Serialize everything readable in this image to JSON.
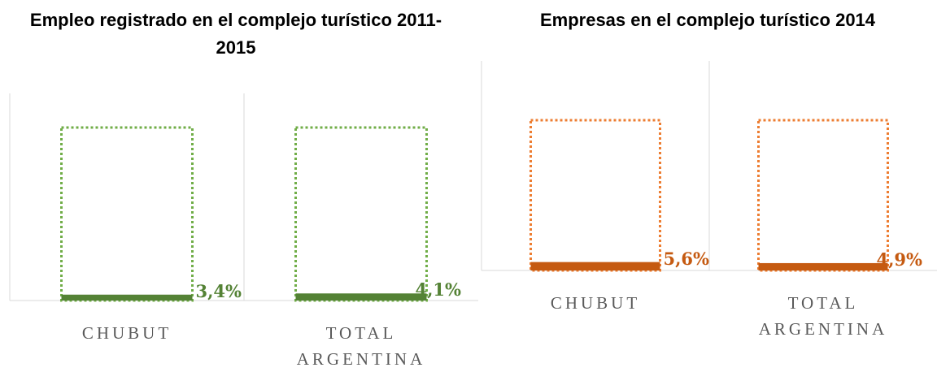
{
  "chart_data": [
    {
      "type": "bar",
      "title": "Empleo registrado en el complejo turístico 2011-2015",
      "categories": [
        "CHUBUT",
        "TOTAL ARGENTINA"
      ],
      "values": [
        3.4,
        4.1
      ],
      "value_labels": [
        "3,4%",
        "4,1%"
      ],
      "color": "#548235",
      "outline_color": "#70ad47",
      "ylim": [
        0,
        100
      ]
    },
    {
      "type": "bar",
      "title": "Empresas en el complejo turístico 2014",
      "categories": [
        "CHUBUT",
        "TOTAL ARGENTINA"
      ],
      "values": [
        5.6,
        4.9
      ],
      "value_labels": [
        "5,6%",
        "4,9%"
      ],
      "color": "#c55a11",
      "outline_color": "#ed7d31",
      "ylim": [
        0,
        100
      ]
    }
  ]
}
